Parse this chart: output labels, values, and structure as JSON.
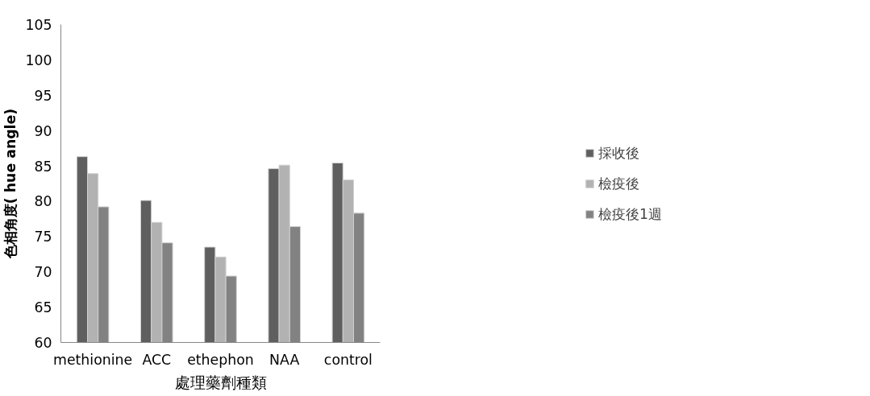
{
  "chart_data": {
    "type": "bar",
    "xlabel": "處理藥劑種類",
    "ylabel": "色相角度( hue angle)",
    "categories": [
      "methionine",
      "ACC",
      "ethephon",
      "NAA",
      "control"
    ],
    "series": [
      {
        "name": "採收後",
        "color": "#5f5f5f",
        "values": [
          86.3,
          80.1,
          73.5,
          84.6,
          85.4
        ]
      },
      {
        "name": "檢疫後",
        "color": "#b2b2b2",
        "values": [
          83.9,
          77.0,
          72.1,
          85.1,
          83.0
        ]
      },
      {
        "name": "檢疫後1週",
        "color": "#828282",
        "values": [
          79.2,
          74.1,
          69.4,
          76.4,
          78.3
        ]
      }
    ],
    "ylim": [
      60,
      105
    ],
    "yticks": [
      60,
      65,
      70,
      75,
      80,
      85,
      90,
      95,
      100,
      105
    ],
    "grid": false,
    "legend": "right"
  }
}
